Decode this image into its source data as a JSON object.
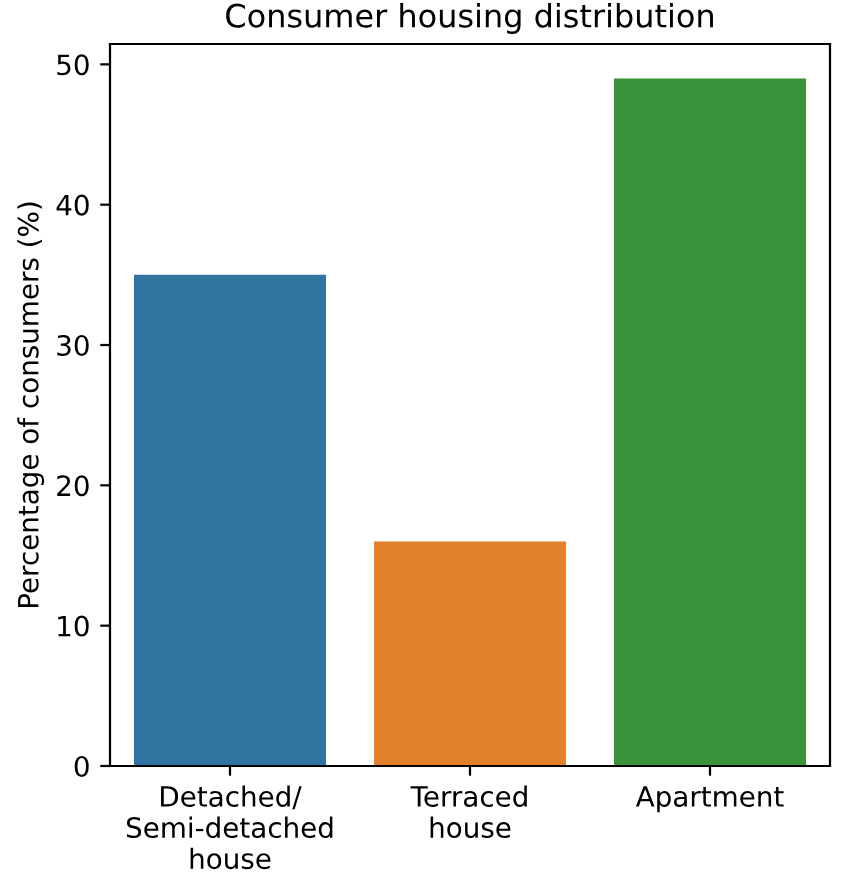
{
  "chart_data": {
    "type": "bar",
    "title": "Consumer housing distribution",
    "ylabel": "Percentage of consumers (%)",
    "categories": [
      "Detached/\nSemi-detached\nhouse",
      "Terraced\nhouse",
      "Apartment"
    ],
    "values": [
      35,
      16,
      49
    ],
    "colors": [
      "#3274a1",
      "#e1812c",
      "#3a923a"
    ],
    "ylim": [
      0,
      51.45
    ],
    "yticks": [
      0,
      10,
      20,
      30,
      40,
      50
    ],
    "grid": false,
    "legend": false
  }
}
